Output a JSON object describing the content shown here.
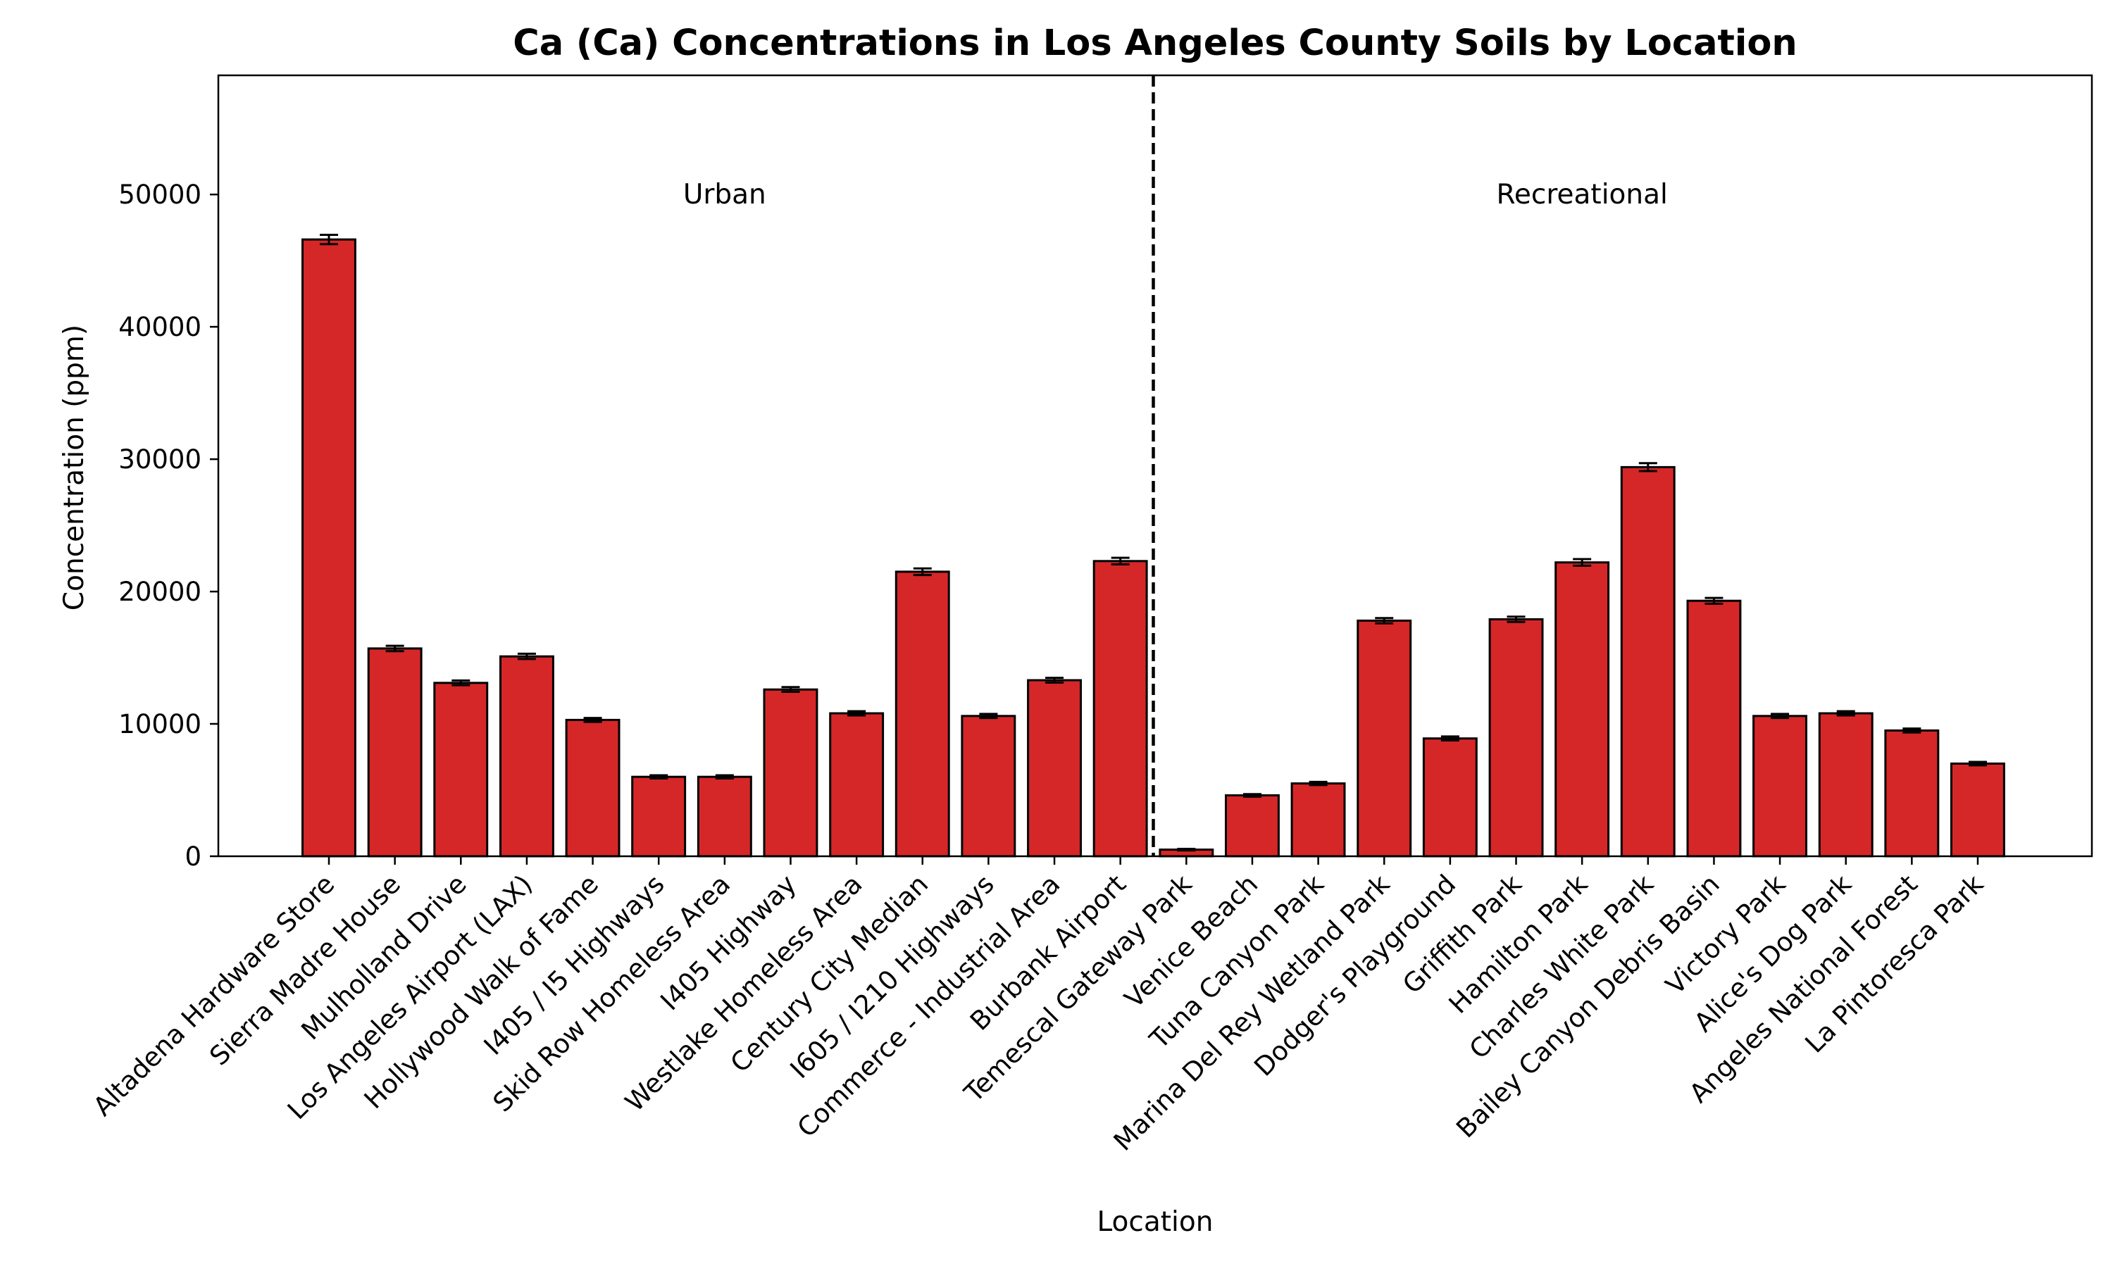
{
  "chart_data": {
    "type": "bar",
    "title": "Ca (Ca) Concentrations in Los Angeles County Soils by Location",
    "xlabel": "Location",
    "ylabel": "Concentration (ppm)",
    "ylim": [
      0,
      59000
    ],
    "yticks": [
      0,
      10000,
      20000,
      30000,
      40000,
      50000
    ],
    "grid": false,
    "legend": "none",
    "bar_color": "#d62728",
    "edge_color": "#000000",
    "categories": [
      "Altadena Hardware Store",
      "Sierra Madre House",
      "Mulholland Drive",
      "Los Angeles Airport (LAX)",
      "Hollywood Walk of Fame",
      "I405 / I5 Highways",
      "Skid Row Homeless Area",
      "I405 Highway",
      "Westlake Homeless Area",
      "Century City Median",
      "I605 / I210 Highways",
      "Commerce - Industrial Area",
      "Burbank Airport",
      "Temescal Gateway Park",
      "Venice Beach",
      "Tuna Canyon Park",
      "Marina Del Rey Wetland Park",
      "Dodger's Playground",
      "Griffith Park",
      "Hamilton Park",
      "Charles White Park",
      "Bailey Canyon Debris Basin",
      "Victory Park",
      "Alice's Dog Park",
      "Angeles National Forest",
      "La Pintoresca Park"
    ],
    "values": [
      46600,
      15700,
      13100,
      15100,
      10300,
      6000,
      6000,
      12600,
      10800,
      21500,
      10600,
      13300,
      22300,
      500,
      4600,
      5500,
      17800,
      8900,
      17900,
      22200,
      29400,
      19300,
      10600,
      10800,
      9500,
      7000
    ],
    "errors": [
      350,
      200,
      180,
      200,
      150,
      120,
      120,
      180,
      160,
      250,
      150,
      180,
      250,
      60,
      100,
      120,
      200,
      150,
      200,
      250,
      300,
      220,
      150,
      160,
      150,
      130
    ],
    "divider_between": [
      12,
      13
    ],
    "regions": [
      {
        "label": "Urban",
        "y": 50000,
        "from": 0,
        "to": 12
      },
      {
        "label": "Recreational",
        "y": 50000,
        "from": 13,
        "to": 25
      }
    ]
  }
}
